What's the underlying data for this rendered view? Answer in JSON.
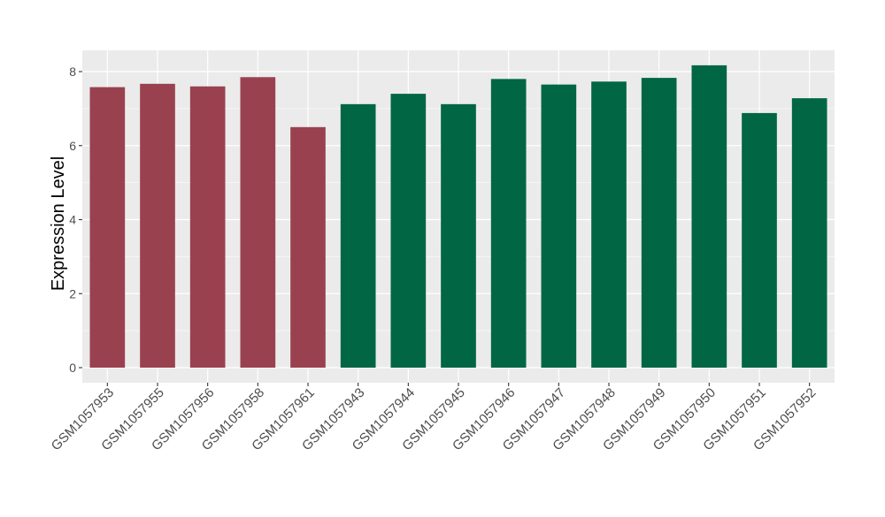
{
  "chart_data": {
    "type": "bar",
    "ylabel": "Expression Level",
    "ylim": [
      0,
      8.4
    ],
    "yticks": [
      0,
      2,
      4,
      6,
      8
    ],
    "grid": true,
    "categories": [
      "GSM1057953",
      "GSM1057955",
      "GSM1057956",
      "GSM1057958",
      "GSM1057961",
      "GSM1057943",
      "GSM1057944",
      "GSM1057945",
      "GSM1057946",
      "GSM1057947",
      "GSM1057948",
      "GSM1057949",
      "GSM1057950",
      "GSM1057951",
      "GSM1057952"
    ],
    "values": [
      7.58,
      7.67,
      7.6,
      7.85,
      6.5,
      7.12,
      7.4,
      7.12,
      7.8,
      7.65,
      7.73,
      7.83,
      8.17,
      6.88,
      7.28
    ],
    "bar_colors": [
      "#9a4150",
      "#9a4150",
      "#9a4150",
      "#9a4150",
      "#9a4150",
      "#006644",
      "#006644",
      "#006644",
      "#006644",
      "#006644",
      "#006644",
      "#006644",
      "#006644",
      "#006644",
      "#006644"
    ],
    "panel_background": "#ebebeb",
    "grid_color": "#ffffff"
  }
}
